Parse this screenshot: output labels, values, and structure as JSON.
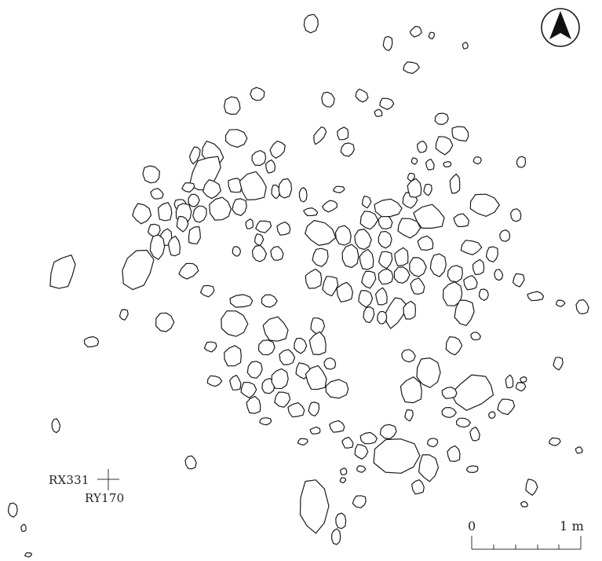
{
  "figure": {
    "north_arrow": "north-arrow-icon",
    "reference_point": {
      "x_label": "RX331",
      "y_label": "RY170"
    },
    "scale_bar": {
      "start_label": "0",
      "end_label": "1 m"
    },
    "colors": {
      "line": "#1a1a1a",
      "fill": "#ffffff"
    }
  }
}
